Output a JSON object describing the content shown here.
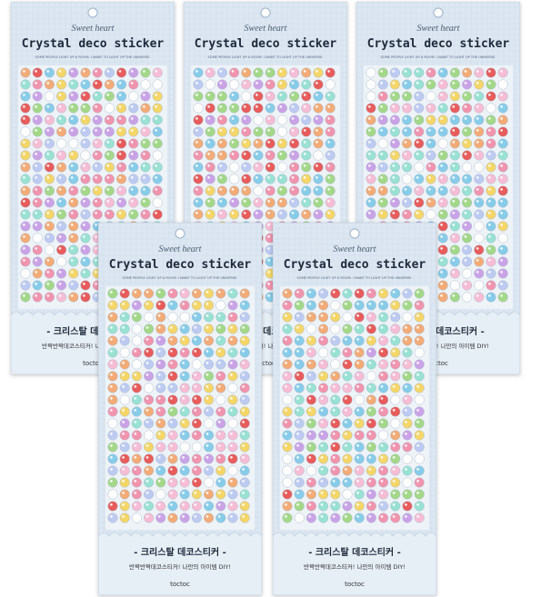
{
  "package": {
    "tagline": "Sweet heart",
    "title": "Crystal deco sticker",
    "subtitle": "SOME PEOPLE LIGHT UP A ROOM. I WANT TO LIGHT UP THE UNIVERSE.",
    "korean_title": "- 크리스탈 데코스티커 -",
    "korean_subtitle": "반짝반짝데코스티커! 나만의 아이템 DIY!",
    "brand": "toctoc"
  }
}
